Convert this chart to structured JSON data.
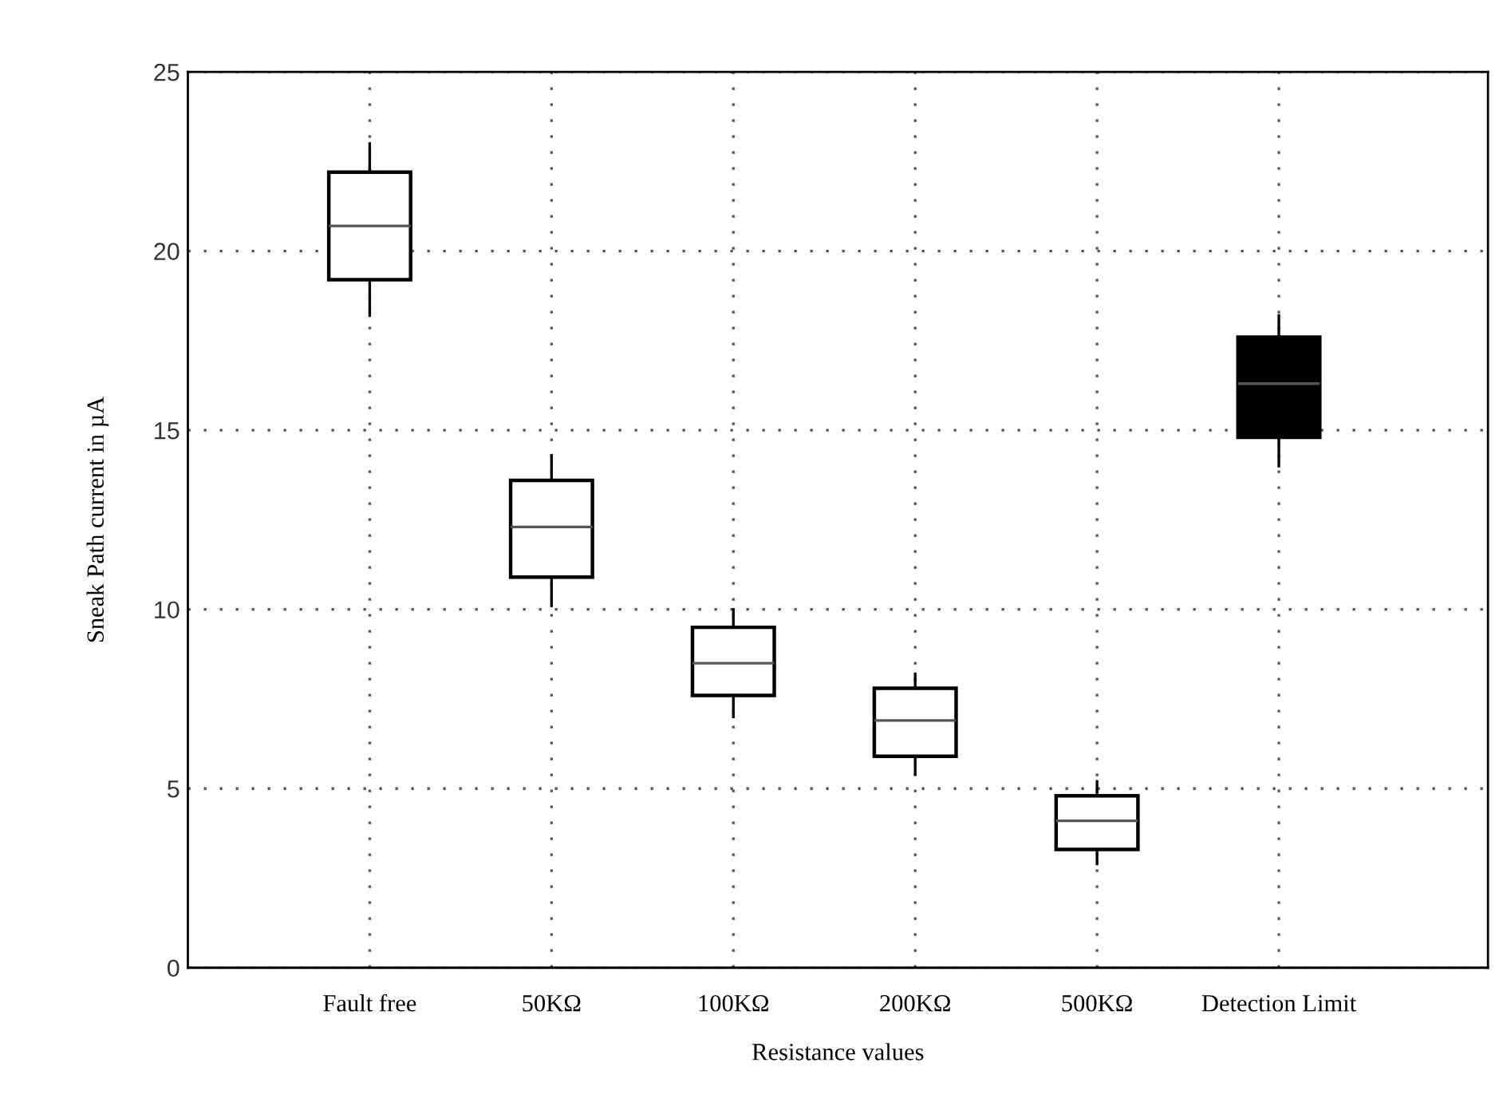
{
  "chart_data": {
    "type": "box",
    "xlabel": "Resistance values",
    "ylabel": "Sneak Path current in µA",
    "categories": [
      "Fault free",
      "50KΩ",
      "100KΩ",
      "200KΩ",
      "500KΩ",
      "Detection Limit"
    ],
    "boxes": [
      {
        "low": 18.2,
        "q1": 19.2,
        "median": 20.7,
        "q3": 22.2,
        "high": 23.0
      },
      {
        "low": 10.1,
        "q1": 10.9,
        "median": 12.3,
        "q3": 13.6,
        "high": 14.3
      },
      {
        "low": 7.0,
        "q1": 7.6,
        "median": 8.5,
        "q3": 9.5,
        "high": 10.0
      },
      {
        "low": 5.4,
        "q1": 5.9,
        "median": 6.9,
        "q3": 7.8,
        "high": 8.2
      },
      {
        "low": 2.9,
        "q1": 3.3,
        "median": 4.1,
        "q3": 4.8,
        "high": 5.2
      },
      {
        "low": 14.0,
        "q1": 14.8,
        "median": 16.3,
        "q3": 17.6,
        "high": 18.2
      }
    ],
    "colors": [
      "#ffffff",
      "#ffffff",
      "#ffffff",
      "#ffffff",
      "#ffffff",
      "#000000"
    ],
    "ylim": [
      0,
      25
    ],
    "yticks": [
      0,
      5,
      10,
      15,
      20,
      25
    ],
    "grid": true
  }
}
